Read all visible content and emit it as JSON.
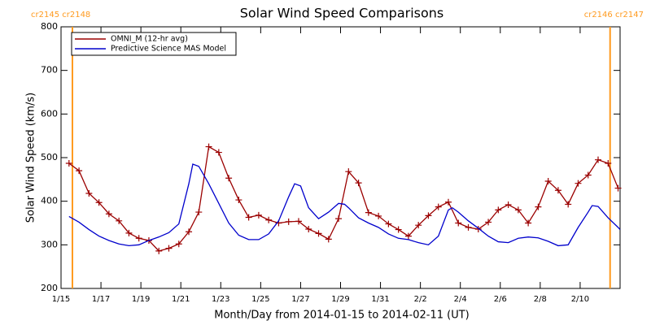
{
  "chart_data": {
    "type": "line",
    "title": "Solar Wind Speed Comparisons",
    "xlabel": "Month/Day from 2014-01-15 to 2014-02-11 (UT)",
    "ylabel": "Solar Wind Speed (km/s)",
    "xlim": [
      0,
      28
    ],
    "ylim": [
      200,
      800
    ],
    "xticks": [
      {
        "value": 0,
        "label": "1/15"
      },
      {
        "value": 2,
        "label": "1/17"
      },
      {
        "value": 4,
        "label": "1/19"
      },
      {
        "value": 6,
        "label": "1/21"
      },
      {
        "value": 8,
        "label": "1/23"
      },
      {
        "value": 10,
        "label": "1/25"
      },
      {
        "value": 12,
        "label": "1/27"
      },
      {
        "value": 14,
        "label": "1/29"
      },
      {
        "value": 16,
        "label": "1/31"
      },
      {
        "value": 18,
        "label": "2/2"
      },
      {
        "value": 20,
        "label": "2/4"
      },
      {
        "value": 22,
        "label": "2/6"
      },
      {
        "value": 24,
        "label": "2/8"
      },
      {
        "value": 26,
        "label": "2/10"
      }
    ],
    "yticks": [
      200,
      300,
      400,
      500,
      600,
      700,
      800
    ],
    "legend": "upper left",
    "annotations": [
      {
        "text": "cr2145 cr2148",
        "x": 0.57,
        "color": "#ff9a1e"
      },
      {
        "text": "cr2146 cr2147",
        "x": 27.5,
        "color": "#ff9a1e"
      }
    ],
    "series": [
      {
        "name": "OMNI_M (12-hr avg)",
        "color": "#9b0000",
        "marker": "+",
        "x": [
          0.4,
          0.9,
          1.4,
          1.9,
          2.4,
          2.9,
          3.4,
          3.9,
          4.4,
          4.9,
          5.4,
          5.9,
          6.4,
          6.9,
          7.4,
          7.9,
          8.4,
          8.9,
          9.4,
          9.9,
          10.4,
          10.9,
          11.4,
          11.9,
          12.4,
          12.9,
          13.4,
          13.9,
          14.4,
          14.9,
          15.4,
          15.9,
          16.4,
          16.9,
          17.4,
          17.9,
          18.4,
          18.9,
          19.4,
          19.9,
          20.4,
          20.9,
          21.4,
          21.9,
          22.4,
          22.9,
          23.4,
          23.9,
          24.4,
          24.9,
          25.4,
          25.9,
          26.4,
          26.9,
          27.4,
          27.9
        ],
        "values": [
          487,
          470,
          418,
          397,
          371,
          355,
          327,
          315,
          310,
          286,
          292,
          302,
          330,
          375,
          525,
          512,
          453,
          403,
          363,
          368,
          357,
          350,
          353,
          354,
          336,
          326,
          313,
          360,
          468,
          442,
          374,
          366,
          348,
          335,
          320,
          345,
          367,
          387,
          398,
          350,
          340,
          336,
          352,
          380,
          392,
          380,
          350,
          387,
          446,
          425,
          393,
          441,
          460,
          495,
          487,
          430
        ]
      },
      {
        "name": "Predictive Science MAS Model",
        "color": "#0000cc",
        "x": [
          0.4,
          0.9,
          1.4,
          1.9,
          2.4,
          2.9,
          3.4,
          3.9,
          4.4,
          4.9,
          5.4,
          5.9,
          6.4,
          6.6,
          6.9,
          7.4,
          7.9,
          8.4,
          8.9,
          9.4,
          9.9,
          10.4,
          10.9,
          11.4,
          11.7,
          12.0,
          12.4,
          12.9,
          13.4,
          13.9,
          14.2,
          14.4,
          14.9,
          15.4,
          15.9,
          16.4,
          16.9,
          17.4,
          17.9,
          18.4,
          18.9,
          19.4,
          19.6,
          19.9,
          20.4,
          20.9,
          21.4,
          21.9,
          22.4,
          22.9,
          23.4,
          23.9,
          24.4,
          24.9,
          25.4,
          25.9,
          26.4,
          26.6,
          26.9,
          27.4,
          27.9,
          28.0
        ],
        "values": [
          365,
          352,
          335,
          320,
          310,
          302,
          298,
          300,
          310,
          318,
          328,
          348,
          440,
          485,
          480,
          440,
          395,
          350,
          322,
          312,
          312,
          325,
          355,
          410,
          440,
          435,
          385,
          360,
          375,
          395,
          393,
          385,
          362,
          350,
          340,
          325,
          315,
          312,
          305,
          300,
          320,
          380,
          385,
          375,
          355,
          338,
          320,
          307,
          305,
          315,
          318,
          316,
          308,
          298,
          300,
          340,
          375,
          390,
          388,
          362,
          340,
          335
        ]
      }
    ]
  }
}
